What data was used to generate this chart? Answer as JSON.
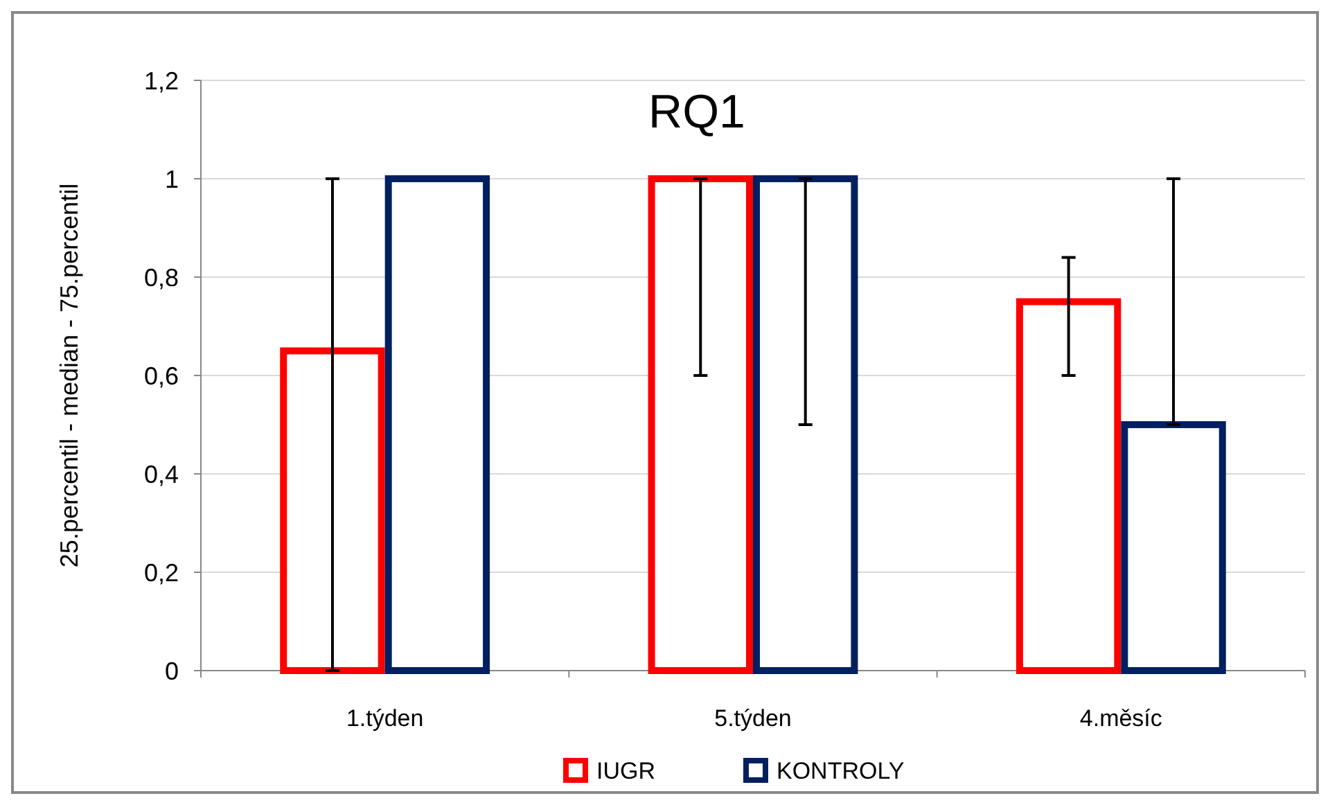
{
  "chart_data": {
    "type": "bar",
    "title": "RQ1",
    "ylabel": "25.percentil - median - 75.percentil",
    "categories": [
      "1.týden",
      "5.týden",
      "4.měsíc"
    ],
    "series": [
      {
        "name": "IUGR",
        "color": "#ff0000",
        "values": [
          0.65,
          1,
          0.75
        ],
        "errors": [
          [
            0,
            1
          ],
          [
            0.6,
            1
          ],
          [
            0.6,
            0.84
          ]
        ]
      },
      {
        "name": "KONTROLY",
        "color": "#002060",
        "values": [
          1,
          1,
          0.5
        ],
        "errors": [
          null,
          [
            0.5,
            1
          ],
          [
            0.5,
            1
          ]
        ]
      }
    ],
    "ylim": [
      0,
      1.2
    ],
    "yticks": [
      0,
      {
        "value": 0.2,
        "label": "0,2"
      },
      {
        "value": 0.4,
        "label": "0,4"
      },
      {
        "value": 0.6,
        "label": "0,6"
      },
      {
        "value": 0.8,
        "label": "0,8"
      },
      1,
      {
        "value": 1.2,
        "label": "1,2"
      }
    ],
    "grid": "y",
    "legend": "bottom"
  }
}
